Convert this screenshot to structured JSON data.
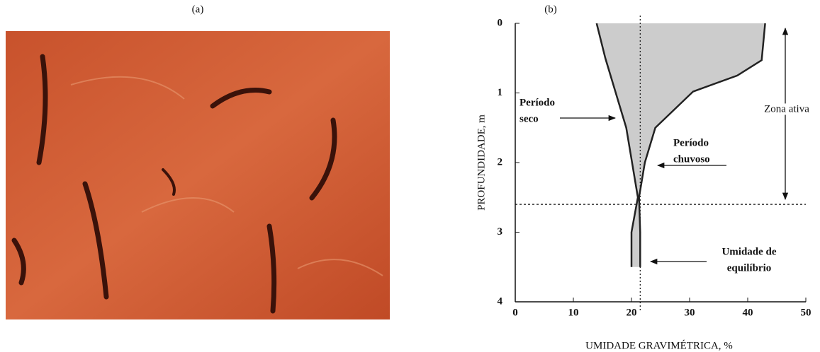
{
  "panel_a": {
    "label": "(a)"
  },
  "chart_data": {
    "type": "profile",
    "panel_label": "(b)",
    "xlabel": "UMIDADE GRAVIMÉTRICA, %",
    "ylabel": "PROFUNDIDADE, m",
    "xlim": [
      0,
      50
    ],
    "xticks": [
      0,
      10,
      20,
      30,
      40,
      50
    ],
    "ylim": [
      0,
      4
    ],
    "yticks": [
      0,
      1,
      2,
      3,
      4
    ],
    "y_inverted": true,
    "fill_color": "#cccccc",
    "series": [
      {
        "color": "#222222",
        "x": [
          14,
          15.5,
          19.1,
          21.1,
          20,
          20
        ],
        "values": [
          0,
          0.5,
          1.5,
          2.5,
          3,
          3.5
        ]
      },
      {
        "color": "#222222",
        "x": [
          43,
          42.4,
          38.2,
          30.6,
          24.1,
          22.3,
          21.3,
          21.5,
          21.5
        ],
        "values": [
          0,
          0.53,
          0.75,
          0.98,
          1.5,
          2,
          2.5,
          3,
          3.5
        ]
      }
    ],
    "equilibrium_moisture": 21.5,
    "active_zone_depth": 2.6,
    "annotations": [
      {
        "lines": [
          "Período",
          "seco"
        ]
      },
      {
        "lines": [
          "Período",
          "chuvoso"
        ]
      },
      {
        "lines": [
          "Umidade de",
          "equilíbrio"
        ]
      },
      {
        "lines": [
          "Zona ativa"
        ]
      }
    ]
  }
}
